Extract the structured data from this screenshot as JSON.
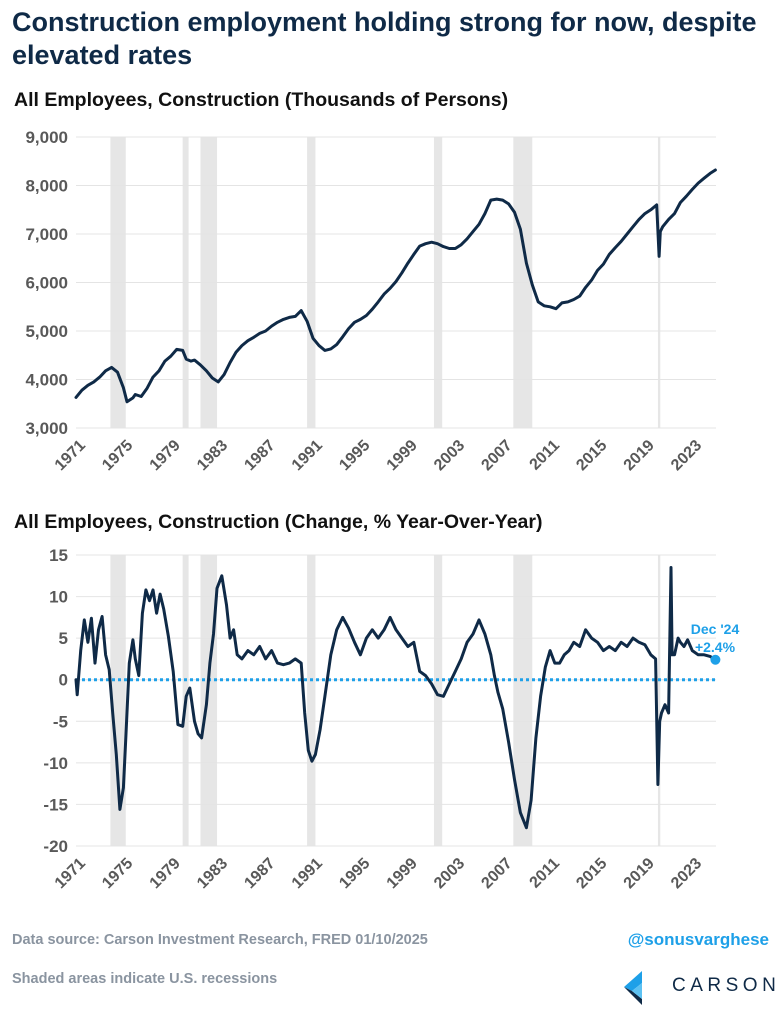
{
  "title": "Construction employment holding strong for now, despite elevated rates",
  "colors": {
    "line": "#0f2a47",
    "recession": "#e6e6e6",
    "zero_line": "#1ea0e8",
    "accent": "#1ea0e8"
  },
  "chart_data": [
    {
      "type": "line",
      "title": "All Employees, Construction (Thousands of Persons)",
      "ylim": [
        3000,
        9000
      ],
      "yticks": [
        "3,000",
        "4,000",
        "5,000",
        "6,000",
        "7,000",
        "8,000",
        "9,000"
      ],
      "xlim": [
        1971,
        2025
      ],
      "xticks": [
        "1971",
        "1975",
        "1979",
        "1983",
        "1987",
        "1991",
        "1995",
        "1999",
        "2003",
        "2007",
        "2011",
        "2015",
        "2019",
        "2023"
      ],
      "grid": true,
      "recessions": [
        [
          1973.9,
          1975.2
        ],
        [
          1980.0,
          1980.5
        ],
        [
          1981.5,
          1982.9
        ],
        [
          1990.5,
          1991.2
        ],
        [
          2001.2,
          2001.9
        ],
        [
          2007.9,
          2009.5
        ],
        [
          2020.1,
          2020.3
        ]
      ],
      "series": [
        {
          "x": [
            1971,
            1971.5,
            1972,
            1972.5,
            1973,
            1973.5,
            1974,
            1974.5,
            1975,
            1975.3,
            1975.8,
            1976,
            1976.5,
            1977,
            1977.5,
            1978,
            1978.5,
            1979,
            1979.5,
            1980,
            1980.3,
            1980.7,
            1981,
            1981.5,
            1982,
            1982.5,
            1983,
            1983.5,
            1984,
            1984.5,
            1985,
            1985.5,
            1986,
            1986.5,
            1987,
            1987.5,
            1988,
            1988.5,
            1989,
            1989.5,
            1990,
            1990.5,
            1991,
            1991.5,
            1992,
            1992.5,
            1993,
            1993.5,
            1994,
            1994.5,
            1995,
            1995.5,
            1996,
            1996.5,
            1997,
            1997.5,
            1998,
            1998.5,
            1999,
            1999.5,
            2000,
            2000.5,
            2001,
            2001.5,
            2002,
            2002.5,
            2003,
            2003.5,
            2004,
            2004.5,
            2005,
            2005.5,
            2006,
            2006.5,
            2007,
            2007.5,
            2008,
            2008.5,
            2009,
            2009.5,
            2010,
            2010.5,
            2011,
            2011.5,
            2012,
            2012.5,
            2013,
            2013.5,
            2014,
            2014.5,
            2015,
            2015.5,
            2016,
            2016.5,
            2017,
            2017.5,
            2018,
            2018.5,
            2019,
            2019.5,
            2020,
            2020.2,
            2020.3,
            2020.5,
            2021,
            2021.5,
            2022,
            2022.5,
            2023,
            2023.5,
            2024,
            2024.5,
            2024.95
          ],
          "values": [
            3630,
            3780,
            3880,
            3950,
            4050,
            4180,
            4250,
            4150,
            3830,
            3540,
            3620,
            3690,
            3650,
            3820,
            4050,
            4180,
            4380,
            4480,
            4620,
            4600,
            4420,
            4380,
            4400,
            4300,
            4180,
            4030,
            3950,
            4100,
            4350,
            4560,
            4700,
            4800,
            4870,
            4950,
            5000,
            5100,
            5180,
            5240,
            5280,
            5300,
            5420,
            5200,
            4850,
            4700,
            4600,
            4630,
            4720,
            4880,
            5050,
            5180,
            5240,
            5320,
            5450,
            5600,
            5760,
            5880,
            6020,
            6200,
            6400,
            6580,
            6750,
            6800,
            6830,
            6800,
            6740,
            6700,
            6700,
            6780,
            6900,
            7050,
            7200,
            7420,
            7700,
            7720,
            7700,
            7620,
            7450,
            7100,
            6400,
            5950,
            5600,
            5520,
            5500,
            5460,
            5580,
            5600,
            5650,
            5720,
            5900,
            6050,
            6250,
            6380,
            6580,
            6720,
            6850,
            7000,
            7150,
            7300,
            7420,
            7500,
            7600,
            6540,
            7050,
            7150,
            7300,
            7420,
            7650,
            7780,
            7920,
            8050,
            8150,
            8250,
            8320
          ]
        }
      ]
    },
    {
      "type": "line",
      "title": "All Employees, Construction (Change, % Year-Over-Year)",
      "ylim": [
        -20,
        15
      ],
      "yticks": [
        "-20",
        "-15",
        "-10",
        "-5",
        "0",
        "5",
        "10",
        "15"
      ],
      "xlim": [
        1971,
        2025
      ],
      "xticks": [
        "1971",
        "1975",
        "1979",
        "1983",
        "1987",
        "1991",
        "1995",
        "1999",
        "2003",
        "2007",
        "2011",
        "2015",
        "2019",
        "2023"
      ],
      "grid": true,
      "zero_line": 0,
      "recessions": [
        [
          1973.9,
          1975.2
        ],
        [
          1980.0,
          1980.5
        ],
        [
          1981.5,
          1982.9
        ],
        [
          1990.5,
          1991.2
        ],
        [
          2001.2,
          2001.9
        ],
        [
          2007.9,
          2009.5
        ],
        [
          2020.1,
          2020.3
        ]
      ],
      "series": [
        {
          "x": [
            1971,
            1971.1,
            1971.4,
            1971.7,
            1972,
            1972.3,
            1972.6,
            1972.9,
            1973.2,
            1973.5,
            1973.8,
            1974.1,
            1974.4,
            1974.7,
            1975.0,
            1975.2,
            1975.5,
            1975.8,
            1976.0,
            1976.3,
            1976.6,
            1976.9,
            1977.2,
            1977.5,
            1977.8,
            1978.1,
            1978.4,
            1978.8,
            1979.2,
            1979.6,
            1980.0,
            1980.3,
            1980.6,
            1981.0,
            1981.3,
            1981.6,
            1982.0,
            1982.3,
            1982.6,
            1982.9,
            1983.3,
            1983.7,
            1984.0,
            1984.3,
            1984.6,
            1985.0,
            1985.5,
            1986.0,
            1986.5,
            1987.0,
            1987.5,
            1988.0,
            1988.5,
            1989.0,
            1989.5,
            1990.0,
            1990.3,
            1990.6,
            1990.9,
            1991.2,
            1991.6,
            1992.0,
            1992.5,
            1993.0,
            1993.5,
            1994.0,
            1994.5,
            1995.0,
            1995.5,
            1996.0,
            1996.5,
            1997.0,
            1997.5,
            1998.0,
            1998.5,
            1999.0,
            1999.5,
            2000.0,
            2000.5,
            2001.0,
            2001.5,
            2002.0,
            2002.5,
            2003.0,
            2003.5,
            2004.0,
            2004.5,
            2005.0,
            2005.5,
            2006.0,
            2006.3,
            2006.6,
            2007.0,
            2007.5,
            2008.0,
            2008.5,
            2009.0,
            2009.4,
            2009.8,
            2010.2,
            2010.6,
            2011.0,
            2011.4,
            2011.8,
            2012.2,
            2012.6,
            2013.0,
            2013.5,
            2014.0,
            2014.5,
            2015.0,
            2015.5,
            2016.0,
            2016.5,
            2017.0,
            2017.5,
            2018.0,
            2018.5,
            2019.0,
            2019.5,
            2019.9,
            2020.1,
            2020.25,
            2020.4,
            2020.7,
            2021.0,
            2021.2,
            2021.3,
            2021.5,
            2021.8,
            2022.0,
            2022.3,
            2022.6,
            2023.0,
            2023.5,
            2024.0,
            2024.5,
            2024.95
          ],
          "values": [
            0,
            -1.8,
            3.5,
            7.2,
            4.5,
            7.4,
            2.0,
            6.0,
            7.6,
            3.0,
            1.2,
            -4.0,
            -9.0,
            -15.6,
            -13.0,
            -7.0,
            2.0,
            4.8,
            2.5,
            0.5,
            8.0,
            10.8,
            9.5,
            10.8,
            8.0,
            10.3,
            8.5,
            5.2,
            1.0,
            -5.4,
            -5.6,
            -2.0,
            -1.0,
            -5.0,
            -6.5,
            -7.0,
            -3.0,
            2.0,
            5.5,
            11.0,
            12.5,
            9.0,
            5.0,
            6.0,
            3.0,
            2.5,
            3.5,
            3.0,
            4.0,
            2.5,
            3.5,
            2.0,
            1.8,
            2.0,
            2.5,
            2.0,
            -4.0,
            -8.5,
            -9.8,
            -9.0,
            -6.0,
            -2.0,
            3.0,
            6.0,
            7.5,
            6.2,
            4.5,
            3.0,
            5.0,
            6.0,
            5.0,
            6.0,
            7.5,
            6.0,
            5.0,
            4.0,
            4.5,
            1.0,
            0.5,
            -0.5,
            -1.8,
            -2.0,
            -0.5,
            1.0,
            2.5,
            4.5,
            5.5,
            7.2,
            5.5,
            3.0,
            0.5,
            -1.5,
            -3.5,
            -7.5,
            -12.0,
            -16.0,
            -17.8,
            -14.5,
            -7.0,
            -2.0,
            1.5,
            3.5,
            2.0,
            2.0,
            3.0,
            3.5,
            4.5,
            4.0,
            6.0,
            5.0,
            4.5,
            3.5,
            4.0,
            3.5,
            4.5,
            4.0,
            5.0,
            4.5,
            4.2,
            3.0,
            2.5,
            -12.6,
            -5.0,
            -4.0,
            -3.0,
            -4.0,
            13.5,
            3.0,
            3.0,
            5.0,
            4.5,
            4.0,
            4.8,
            3.5,
            3.0,
            3.0,
            2.8,
            2.4
          ]
        }
      ],
      "annotation": {
        "label": "Dec '24",
        "value_label": "+2.4%",
        "x": 2024.95,
        "y": 2.4
      }
    }
  ],
  "footer": {
    "source": "Data source: Carson Investment Research, FRED   01/10/2025",
    "shaded_note": "Shaded areas indicate U.S. recessions",
    "handle": "@sonusvarghese",
    "logo_text": "CARSON"
  }
}
